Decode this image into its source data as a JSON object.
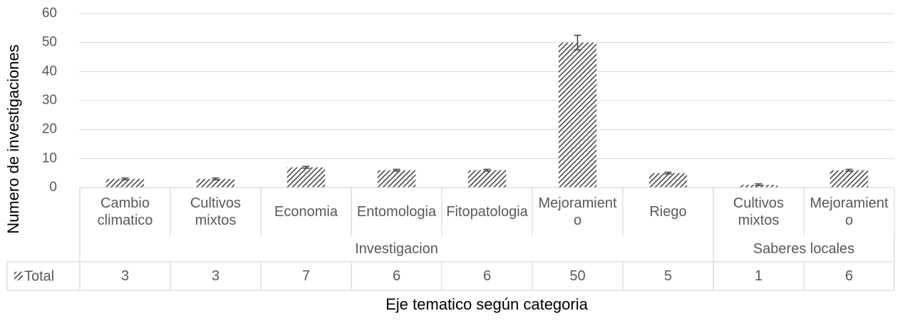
{
  "chart_data": {
    "type": "bar",
    "title_y": "Numero de investigaciones",
    "title_x": "Eje tematico según categoria",
    "categories": [
      "Cambio climatico",
      "Cultivos mixtos",
      "Economia",
      "Entomologia",
      "Fitopatologia",
      "Mejoramiento",
      "Riego",
      "Cultivos mixtos",
      "Mejoramiento"
    ],
    "groups": [
      {
        "name": "Investigacion",
        "count": 7
      },
      {
        "name": "Saberes locales",
        "count": 2
      }
    ],
    "series": [
      {
        "name": "Total",
        "color": "#404040",
        "values": [
          3,
          3,
          7,
          6,
          6,
          50,
          5,
          1,
          6
        ],
        "errors": [
          0.3,
          0.3,
          0.3,
          0.3,
          0.3,
          2.5,
          0.3,
          0.3,
          0.3
        ]
      }
    ],
    "ylim": [
      0,
      60
    ],
    "yticks": [
      0,
      10,
      20,
      30,
      40,
      50,
      60
    ],
    "grid": true,
    "data_table": true
  }
}
